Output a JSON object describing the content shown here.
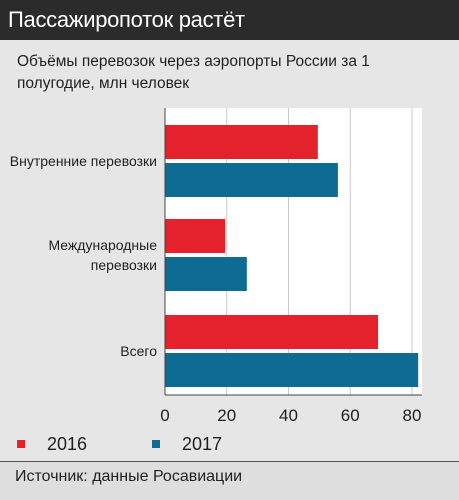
{
  "header": {
    "title": "Пассажиропоток растёт"
  },
  "chart_data": {
    "type": "bar",
    "orientation": "horizontal",
    "title": "Объёмы перевозок через аэропорты России за 1 полугодие, млн человек",
    "categories": [
      [
        "Внутренние перевозки"
      ],
      [
        "Международные",
        "перевозки"
      ],
      [
        "Всего"
      ]
    ],
    "series": [
      {
        "name": "2016",
        "color": "#e3222c",
        "values": [
          49.5,
          19.5,
          69
        ]
      },
      {
        "name": "2017",
        "color": "#0e6c94",
        "values": [
          56,
          26.5,
          82
        ]
      }
    ],
    "xlim": [
      0,
      80
    ],
    "xticks": [
      0,
      20,
      40,
      60,
      80
    ],
    "grid": true,
    "legend_position": "bottom"
  },
  "source": "Источник: данные Росавиации"
}
